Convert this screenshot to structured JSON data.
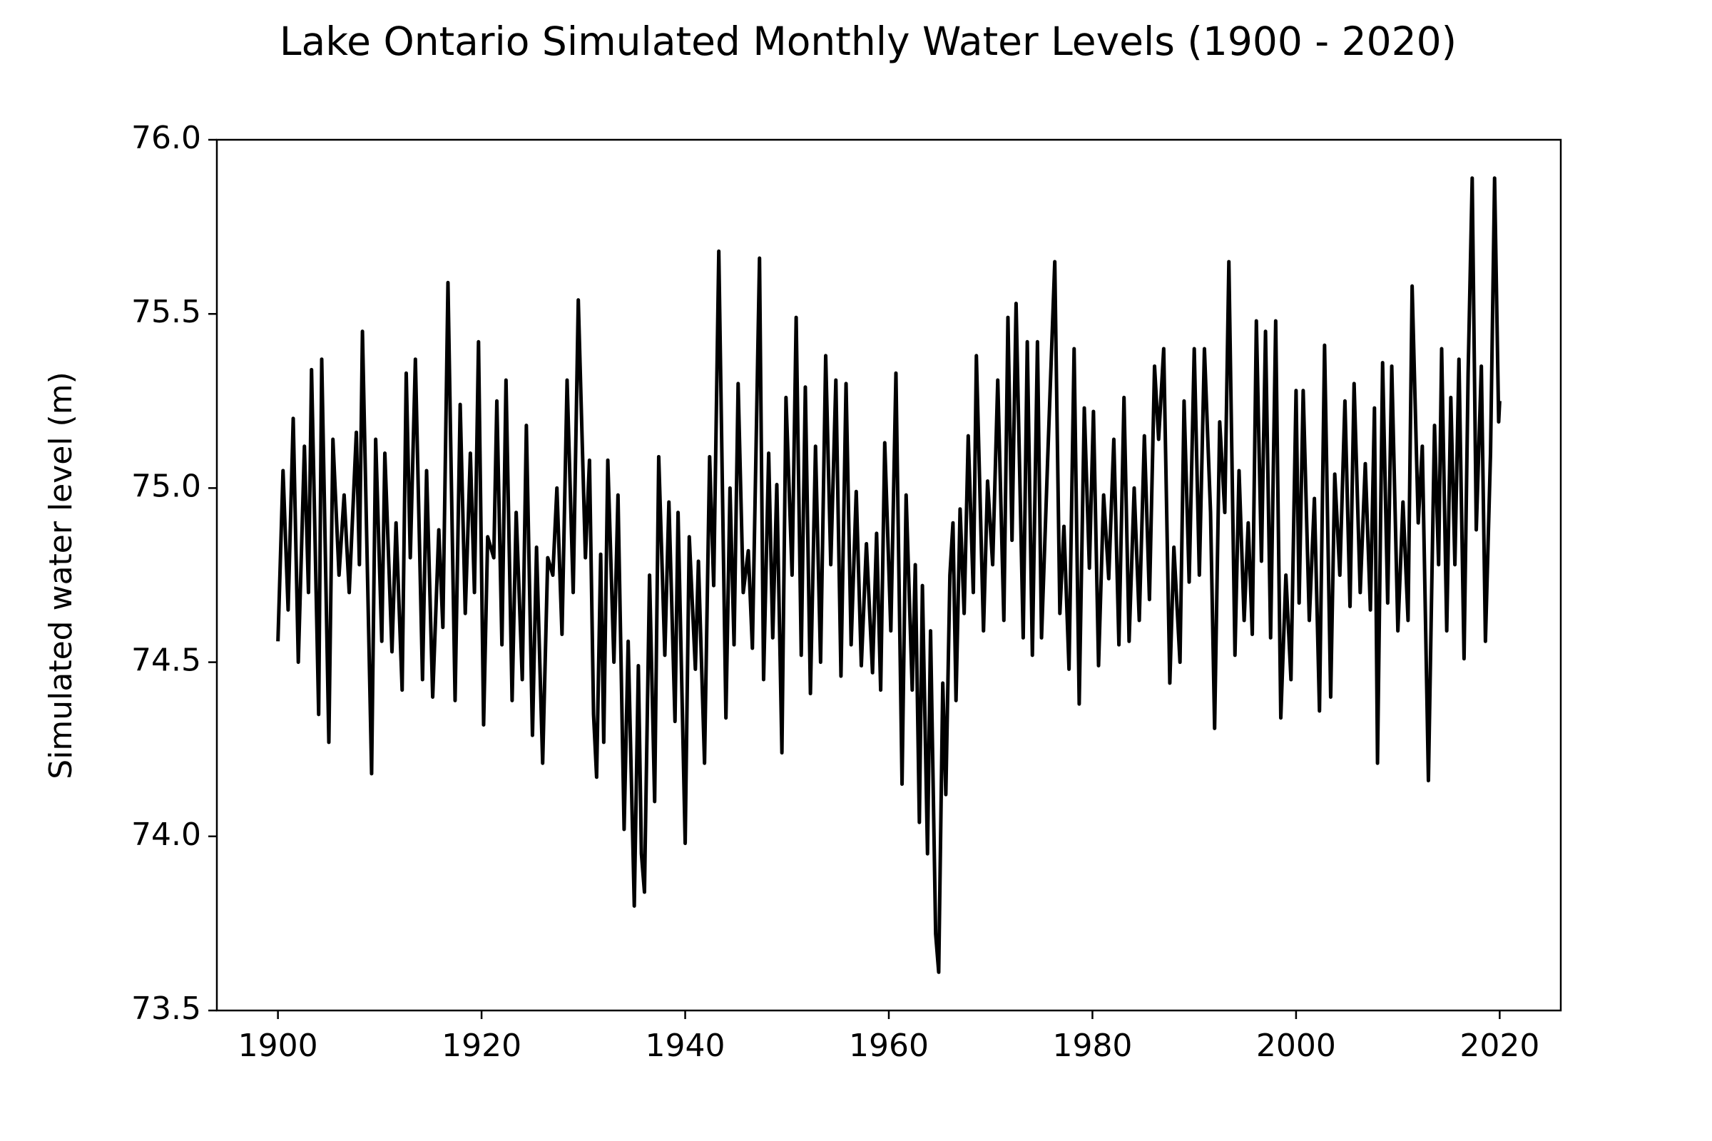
{
  "chart_data": {
    "type": "line",
    "title": "Lake Ontario Simulated Monthly Water Levels (1900 - 2020)",
    "y_label": "Simulated water level (m)",
    "xlim": [
      1894,
      2026
    ],
    "ylim": [
      73.5,
      76.0
    ],
    "xticks": [
      1900,
      1920,
      1940,
      1960,
      1980,
      2000,
      2020
    ],
    "yticks": [
      73.5,
      {
        "value": 74.0,
        "label": "74.0"
      },
      74.5,
      {
        "value": 75.0,
        "label": "75.0"
      },
      75.5,
      {
        "value": 76.0,
        "label": "76.0"
      }
    ],
    "grid": false,
    "series": [
      {
        "color": "#000000",
        "x": [
          1900,
          1900.5,
          1901,
          1901.5,
          1902,
          1902.6,
          1903,
          1903.3,
          1904,
          1904.3,
          1905,
          1905.4,
          1906,
          1906.5,
          1907,
          1907.7,
          1908,
          1908.3,
          1909.2,
          1909.6,
          1910.2,
          1910.5,
          1911.2,
          1911.6,
          1912.2,
          1912.6,
          1913,
          1913.5,
          1914.2,
          1914.6,
          1915.2,
          1915.8,
          1916.2,
          1916.7,
          1917.4,
          1917.9,
          1918.4,
          1918.9,
          1919.3,
          1919.7,
          1920.2,
          1920.6,
          1921.2,
          1921.5,
          1922,
          1922.4,
          1923,
          1923.4,
          1924,
          1924.4,
          1925,
          1925.4,
          1926,
          1926.5,
          1927,
          1927.4,
          1927.9,
          1928.4,
          1929,
          1929.5,
          1930.2,
          1930.6,
          1931,
          1931.3,
          1931.7,
          1932,
          1932.4,
          1933,
          1933.4,
          1934,
          1934.4,
          1935,
          1935.4,
          1935.7,
          1936,
          1936.5,
          1937,
          1937.4,
          1938,
          1938.4,
          1939,
          1939.3,
          1940,
          1940.4,
          1941,
          1941.3,
          1941.9,
          1942.4,
          1942.8,
          1943.3,
          1944,
          1944.4,
          1944.8,
          1945.2,
          1945.7,
          1946.2,
          1946.6,
          1947.3,
          1947.7,
          1948.2,
          1948.6,
          1949,
          1949.5,
          1949.9,
          1950.5,
          1950.9,
          1951.4,
          1951.8,
          1952.3,
          1952.8,
          1953.3,
          1953.8,
          1954.3,
          1954.8,
          1955.3,
          1955.8,
          1956.3,
          1956.8,
          1957.3,
          1957.8,
          1958.4,
          1958.8,
          1959.2,
          1959.6,
          1960.2,
          1960.7,
          1961.3,
          1961.7,
          1962.3,
          1962.6,
          1963,
          1963.3,
          1963.8,
          1964.1,
          1964.6,
          1964.9,
          1965.3,
          1965.6,
          1966,
          1966.3,
          1966.6,
          1967,
          1967.4,
          1967.8,
          1968.3,
          1968.6,
          1969.3,
          1969.7,
          1970.2,
          1970.7,
          1971.3,
          1971.7,
          1972.1,
          1972.5,
          1973.2,
          1973.6,
          1974.1,
          1974.6,
          1975,
          1975.6,
          1976.3,
          1976.8,
          1977.2,
          1977.7,
          1978.2,
          1978.7,
          1979.2,
          1979.7,
          1980.1,
          1980.6,
          1981.1,
          1981.6,
          1982.1,
          1982.6,
          1983.1,
          1983.6,
          1984.1,
          1984.6,
          1985.1,
          1985.6,
          1986.1,
          1986.5,
          1987,
          1987.6,
          1988,
          1988.6,
          1989,
          1989.5,
          1990,
          1990.5,
          1991,
          1991.6,
          1992,
          1992.5,
          1993,
          1993.4,
          1994,
          1994.4,
          1994.9,
          1995.3,
          1995.7,
          1996.1,
          1996.6,
          1997,
          1997.5,
          1998,
          1998.5,
          1999,
          1999.5,
          2000,
          2000.3,
          2000.7,
          2001.3,
          2001.8,
          2002.3,
          2002.8,
          2003.4,
          2003.8,
          2004.3,
          2004.8,
          2005.3,
          2005.7,
          2006.3,
          2006.8,
          2007.3,
          2007.7,
          2008,
          2008.5,
          2009,
          2009.4,
          2010,
          2010.5,
          2011,
          2011.4,
          2012,
          2012.4,
          2013,
          2013.6,
          2014,
          2014.3,
          2014.8,
          2015.2,
          2015.6,
          2016,
          2016.5,
          2016.9,
          2017.3,
          2017.7,
          2018.2,
          2018.6,
          2019.1,
          2019.5,
          2019.9,
          2020
        ],
        "values": [
          74.56,
          75.05,
          74.65,
          75.2,
          74.5,
          75.12,
          74.7,
          75.34,
          74.35,
          75.37,
          74.27,
          75.14,
          74.75,
          74.98,
          74.7,
          75.16,
          74.78,
          75.45,
          74.18,
          75.14,
          74.56,
          75.1,
          74.53,
          74.9,
          74.42,
          75.33,
          74.8,
          75.37,
          74.45,
          75.05,
          74.4,
          74.88,
          74.6,
          75.59,
          74.39,
          75.24,
          74.64,
          75.1,
          74.7,
          75.42,
          74.32,
          74.86,
          74.8,
          75.25,
          74.55,
          75.31,
          74.39,
          74.93,
          74.45,
          75.18,
          74.29,
          74.83,
          74.21,
          74.8,
          74.75,
          75.0,
          74.58,
          75.31,
          74.7,
          75.54,
          74.8,
          75.08,
          74.35,
          74.17,
          74.81,
          74.27,
          75.08,
          74.5,
          74.98,
          74.02,
          74.56,
          73.8,
          74.49,
          73.95,
          73.84,
          74.75,
          74.1,
          75.09,
          74.52,
          74.96,
          74.33,
          74.93,
          73.98,
          74.86,
          74.48,
          74.79,
          74.21,
          75.09,
          74.72,
          75.68,
          74.34,
          75.0,
          74.55,
          75.3,
          74.7,
          74.82,
          74.54,
          75.66,
          74.45,
          75.1,
          74.57,
          75.01,
          74.24,
          75.26,
          74.75,
          75.49,
          74.52,
          75.29,
          74.41,
          75.12,
          74.5,
          75.38,
          74.78,
          75.31,
          74.46,
          75.3,
          74.55,
          74.99,
          74.49,
          74.84,
          74.47,
          74.87,
          74.42,
          75.13,
          74.59,
          75.33,
          74.15,
          74.98,
          74.42,
          74.78,
          74.04,
          74.72,
          73.95,
          74.59,
          73.72,
          73.61,
          74.44,
          74.12,
          74.75,
          74.9,
          74.39,
          74.94,
          74.64,
          75.15,
          74.7,
          75.38,
          74.59,
          75.02,
          74.78,
          75.31,
          74.62,
          75.49,
          74.85,
          75.53,
          74.57,
          75.42,
          74.52,
          75.42,
          74.57,
          75.08,
          75.65,
          74.64,
          74.89,
          74.48,
          75.4,
          74.38,
          75.23,
          74.77,
          75.22,
          74.49,
          74.98,
          74.74,
          75.14,
          74.55,
          75.26,
          74.56,
          75.0,
          74.62,
          75.15,
          74.68,
          75.35,
          75.14,
          75.4,
          74.44,
          74.83,
          74.5,
          75.25,
          74.73,
          75.4,
          74.75,
          75.4,
          74.93,
          74.31,
          75.19,
          74.93,
          75.65,
          74.52,
          75.05,
          74.62,
          74.9,
          74.58,
          75.48,
          74.79,
          75.45,
          74.57,
          75.48,
          74.34,
          74.75,
          74.45,
          75.28,
          74.67,
          75.28,
          74.62,
          74.97,
          74.36,
          75.41,
          74.4,
          75.04,
          74.75,
          75.25,
          74.66,
          75.3,
          74.7,
          75.07,
          74.65,
          75.23,
          74.21,
          75.36,
          74.67,
          75.35,
          74.59,
          74.96,
          74.62,
          75.58,
          74.9,
          75.12,
          74.16,
          75.18,
          74.78,
          75.4,
          74.59,
          75.26,
          74.78,
          75.37,
          74.51,
          75.33,
          75.89,
          74.88,
          75.35,
          74.56,
          75.1,
          75.89,
          75.19,
          75.25
        ]
      }
    ]
  }
}
